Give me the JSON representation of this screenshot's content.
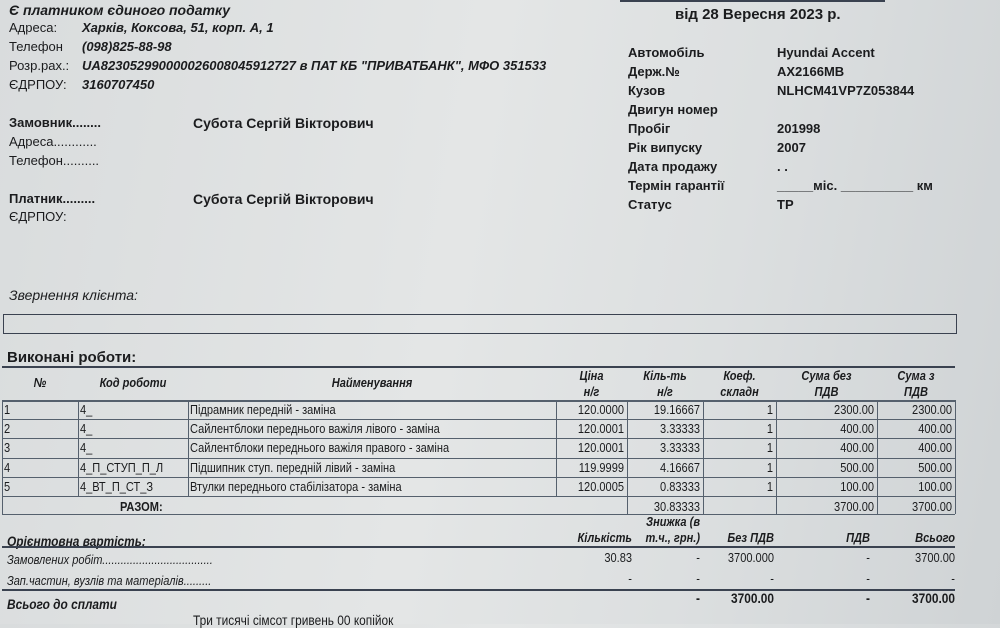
{
  "header": {
    "tax_status": "Є платником єдиного податку",
    "date": "від 28 Вересня 2023 р.",
    "company": [
      {
        "label": "Адреса:",
        "value": "Харків, Коксова, 51, корп. А, 1"
      },
      {
        "label": "Телефон",
        "value": "(098)825-88-98"
      },
      {
        "label": "Розр.рах.:",
        "value": "UA823052990000026008045912727 в ПАТ КБ \"ПРИВАТБАНК\", МФО 351533"
      },
      {
        "label": "ЄДРПОУ:",
        "value": "3160707450"
      }
    ]
  },
  "customer": {
    "customer_label": "Замовник........",
    "customer_name": "Субота Сергій Вікторович",
    "address_label": "Адреса............",
    "phone_label": "Телефон..........",
    "payer_label": "Платник.........",
    "payer_name": "Субота Сергій Вікторович",
    "edrpou_label": "ЄДРПОУ:"
  },
  "vehicle": [
    {
      "label": "Автомобіль",
      "value": "Hyundai Accent"
    },
    {
      "label": "Держ.№",
      "value": "AX2166MB"
    },
    {
      "label": "Кузов",
      "value": "NLHCM41VP7Z053844"
    },
    {
      "label": "Двигун номер",
      "value": ""
    },
    {
      "label": "Пробіг",
      "value": "201998"
    },
    {
      "label": "Рік випуску",
      "value": "2007"
    },
    {
      "label": "Дата продажу",
      "value": ". ."
    },
    {
      "label": "Термін гарантії",
      "value": "_____міс. __________ км"
    },
    {
      "label": "Статус",
      "value": "ТР"
    }
  ],
  "request": {
    "label": "Звернення клієнта:",
    "value": ""
  },
  "works": {
    "title": "Виконані роботи:",
    "columns": [
      "№",
      "Код роботи",
      "Найменування",
      "Ціна н/г",
      "Кіль-ть н/г",
      "Коеф. складн",
      "Сума без ПДВ",
      "Сума з ПДВ"
    ],
    "rows": [
      [
        "1",
        "4_",
        "Підрамник передній - заміна",
        "120.0000",
        "19.16667",
        "1",
        "2300.00",
        "2300.00"
      ],
      [
        "2",
        "4_",
        "Сайлентблоки переднього важіля лівого - заміна",
        "120.0001",
        "3.33333",
        "1",
        "400.00",
        "400.00"
      ],
      [
        "3",
        "4_",
        "Сайлентблоки переднього важіля правого - заміна",
        "120.0001",
        "3.33333",
        "1",
        "400.00",
        "400.00"
      ],
      [
        "4",
        "4_П_СТУП_П_Л",
        "Підшипник ступ. передній лівий - заміна",
        "119.9999",
        "4.16667",
        "1",
        "500.00",
        "500.00"
      ],
      [
        "5",
        "4_ВТ_П_СТ_З",
        "Втулки переднього стабілізатора - заміна",
        "120.0005",
        "0.83333",
        "1",
        "100.00",
        "100.00"
      ]
    ],
    "total_label": "РАЗОМ:",
    "total_qty": "30.83333",
    "total_sum": "3700.00",
    "total_sum_vat": "3700.00"
  },
  "summary": {
    "title": "Орієнтовна вартість:",
    "columns": [
      "Кількість",
      "Знижка (в т.ч., грн.)",
      "Без ПДВ",
      "ПДВ",
      "Всього"
    ],
    "rows": [
      {
        "label": "Замовлених робіт....................................",
        "values": [
          "30.83",
          "-",
          "3700.000",
          "-",
          "3700.00"
        ]
      },
      {
        "label": "Зап.частин, вузлів та матеріалів.........",
        "values": [
          "-",
          "-",
          "-",
          "-",
          "-"
        ]
      }
    ],
    "total_label": "Всього до сплати",
    "total_values": [
      "",
      "-",
      "3700.00",
      "-",
      "3700.00"
    ],
    "in_words": "Три тисячі сімсот гривень 00 копійок"
  }
}
